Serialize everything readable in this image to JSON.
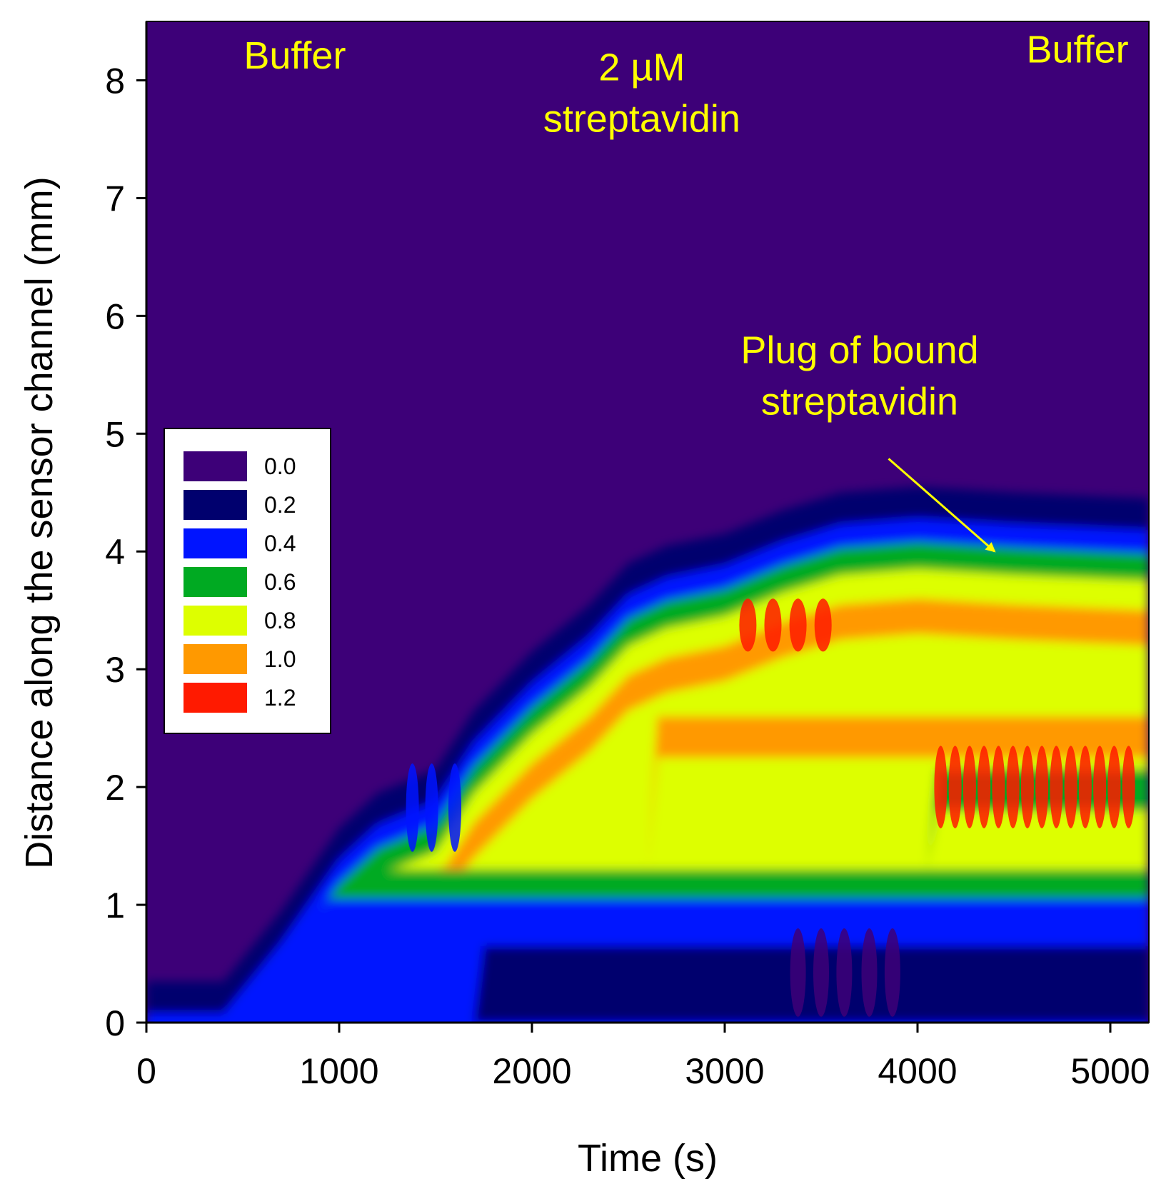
{
  "chart_data": {
    "type": "heatmap",
    "title": "",
    "xlabel": "Time (s)",
    "ylabel": "Distance along the sensor channel (mm)",
    "xlim": [
      0,
      5200
    ],
    "ylim": [
      0,
      8.5
    ],
    "xticks": [
      0,
      1000,
      2000,
      3000,
      4000,
      5000
    ],
    "yticks": [
      0,
      1,
      2,
      3,
      4,
      5,
      6,
      7,
      8
    ],
    "legend": {
      "placement": "left",
      "levels": [
        {
          "label": "0.0",
          "value": 0.0,
          "color": "#3d0078"
        },
        {
          "label": "0.2",
          "value": 0.2,
          "color": "#00006e"
        },
        {
          "label": "0.4",
          "value": 0.4,
          "color": "#0014ff"
        },
        {
          "label": "0.6",
          "value": 0.6,
          "color": "#00aa22"
        },
        {
          "label": "0.8",
          "value": 0.8,
          "color": "#ddff00"
        },
        {
          "label": "1.0",
          "value": 1.0,
          "color": "#ff9900"
        },
        {
          "label": "1.2",
          "value": 1.2,
          "color": "#ff1a00"
        }
      ]
    },
    "plug_front_mm": [
      [
        0,
        0.0
      ],
      [
        400,
        0.0
      ],
      [
        700,
        0.6
      ],
      [
        1000,
        1.3
      ],
      [
        1200,
        1.6
      ],
      [
        1500,
        1.8
      ],
      [
        1700,
        2.3
      ],
      [
        2000,
        2.8
      ],
      [
        2300,
        3.2
      ],
      [
        2500,
        3.55
      ],
      [
        2700,
        3.7
      ],
      [
        3000,
        3.8
      ],
      [
        3300,
        4.0
      ],
      [
        3600,
        4.15
      ],
      [
        4000,
        4.2
      ],
      [
        4500,
        4.15
      ],
      [
        5200,
        4.1
      ]
    ],
    "annotations": [
      {
        "id": "buffer_start",
        "lines": [
          "Buffer"
        ],
        "t": 770,
        "y": 8.1
      },
      {
        "id": "streptavidin_in",
        "lines": [
          "2 µM",
          "streptavidin"
        ],
        "t": 2570,
        "y": 8.0
      },
      {
        "id": "buffer_end",
        "lines": [
          "Buffer"
        ],
        "t": 4830,
        "y": 8.15
      },
      {
        "id": "plug",
        "lines": [
          "Plug of bound",
          "streptavidin"
        ],
        "t": 3700,
        "y": 5.6,
        "arrow_to": {
          "t": 4400,
          "y": 4.0
        }
      }
    ]
  }
}
